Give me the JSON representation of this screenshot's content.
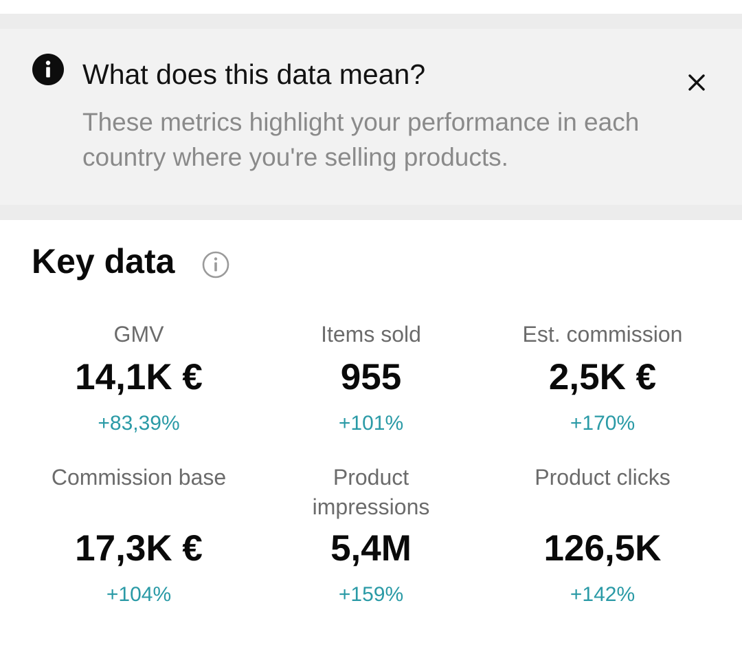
{
  "banner": {
    "title": "What does this data mean?",
    "description": "These metrics highlight your performance in each country where you're selling products.",
    "icon": "info-filled-icon",
    "close_icon": "close-icon"
  },
  "key_data": {
    "title": "Key data",
    "info_icon": "info-outline-icon",
    "accent_color": "#2a9aa6",
    "metrics": [
      {
        "label": "GMV",
        "value": "14,1K €",
        "change": "+83,39%"
      },
      {
        "label": "Items sold",
        "value": "955",
        "change": "+101%"
      },
      {
        "label": "Est. commission",
        "value": "2,5K €",
        "change": "+170%"
      },
      {
        "label": "Commission base",
        "value": "17,3K €",
        "change": "+104%"
      },
      {
        "label": "Product impressions",
        "value": "5,4M",
        "change": "+159%"
      },
      {
        "label": "Product clicks",
        "value": "126,5K",
        "change": "+142%"
      }
    ]
  }
}
